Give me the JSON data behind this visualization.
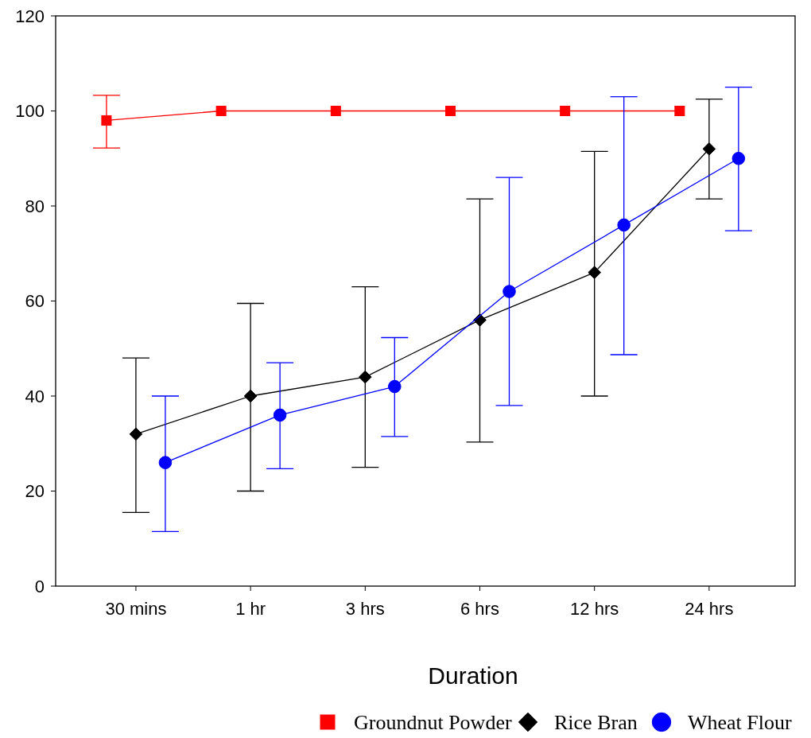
{
  "chart_data": {
    "type": "line",
    "xlabel": "Duration",
    "categories": [
      "30 mins",
      "1 hr",
      "3 hrs",
      "6 hrs",
      "12 hrs",
      "24 hrs"
    ],
    "ylim": [
      0,
      120
    ],
    "yticks": [
      0,
      20,
      40,
      60,
      80,
      100,
      120
    ],
    "grid": false,
    "legend": "bottom",
    "series": [
      {
        "name": "Groundnut Powder",
        "color": "#ff0000",
        "marker": "square",
        "values": [
          98,
          100,
          100,
          100,
          100,
          100
        ],
        "errors": [
          [
            92.2,
            103.3
          ],
          null,
          null,
          null,
          null,
          null
        ]
      },
      {
        "name": "Rice Bran",
        "color": "#000000",
        "marker": "diamond",
        "values": [
          32,
          40,
          44,
          56,
          66,
          92
        ],
        "errors": [
          [
            15.5,
            48
          ],
          [
            20,
            59.5
          ],
          [
            25,
            63
          ],
          [
            30.3,
            81.5
          ],
          [
            40,
            91.5
          ],
          [
            81.5,
            102.5
          ]
        ]
      },
      {
        "name": "Wheat Flour",
        "color": "#0000ff",
        "marker": "circle",
        "values": [
          26,
          36,
          42,
          62,
          76,
          90
        ],
        "errors": [
          [
            11.5,
            40
          ],
          [
            24.7,
            47
          ],
          [
            31.5,
            52.3
          ],
          [
            38,
            86
          ],
          [
            48.7,
            103
          ],
          [
            74.8,
            105
          ]
        ]
      }
    ]
  }
}
